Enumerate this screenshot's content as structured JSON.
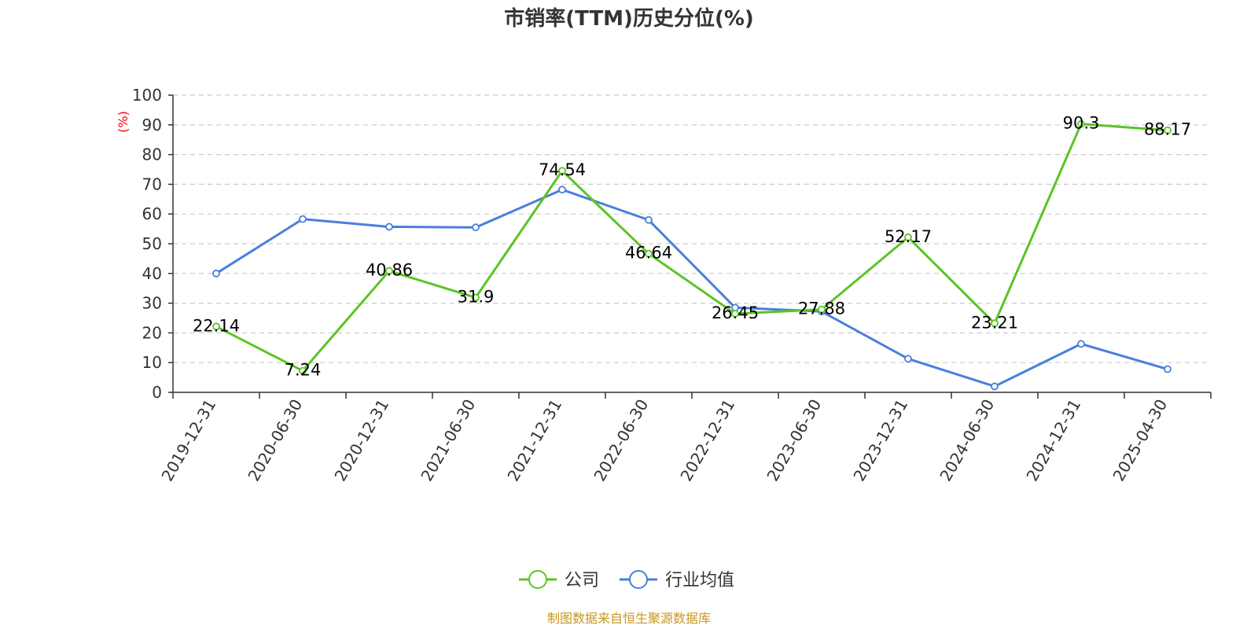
{
  "chart_data": {
    "type": "line",
    "title": "市销率(TTM)历史分位(%)",
    "ylabel": "(%)",
    "xlabel": "",
    "ylim": [
      0,
      100
    ],
    "y_ticks": [
      "0",
      "10",
      "20",
      "30",
      "40",
      "50",
      "60",
      "70",
      "80",
      "90",
      "100"
    ],
    "grid": true,
    "legend_position": "bottom-center",
    "categories": [
      "2019-12-31",
      "2020-06-30",
      "2020-12-31",
      "2021-06-30",
      "2021-12-31",
      "2022-06-30",
      "2022-12-31",
      "2023-06-30",
      "2023-12-31",
      "2024-06-30",
      "2024-12-31",
      "2025-04-30"
    ],
    "series": [
      {
        "name": "公司",
        "color": "#5cc424",
        "values": [
          22.14,
          7.24,
          40.86,
          31.9,
          74.54,
          46.64,
          26.45,
          27.88,
          52.17,
          23.21,
          90.3,
          88.17
        ],
        "labels": [
          "22.14",
          "7.24",
          "40.86",
          "31.9",
          "74.54",
          "46.64",
          "26.45",
          "27.88",
          "52.17",
          "23.21",
          "90.3",
          "88.17"
        ]
      },
      {
        "name": "行业均值",
        "color": "#4a7fdc",
        "values": [
          40,
          58.3,
          55.7,
          55.5,
          68.2,
          58,
          28.5,
          27.2,
          11.3,
          2,
          16.3,
          7.8
        ]
      }
    ],
    "source": "制图数据来自恒生聚源数据库"
  }
}
